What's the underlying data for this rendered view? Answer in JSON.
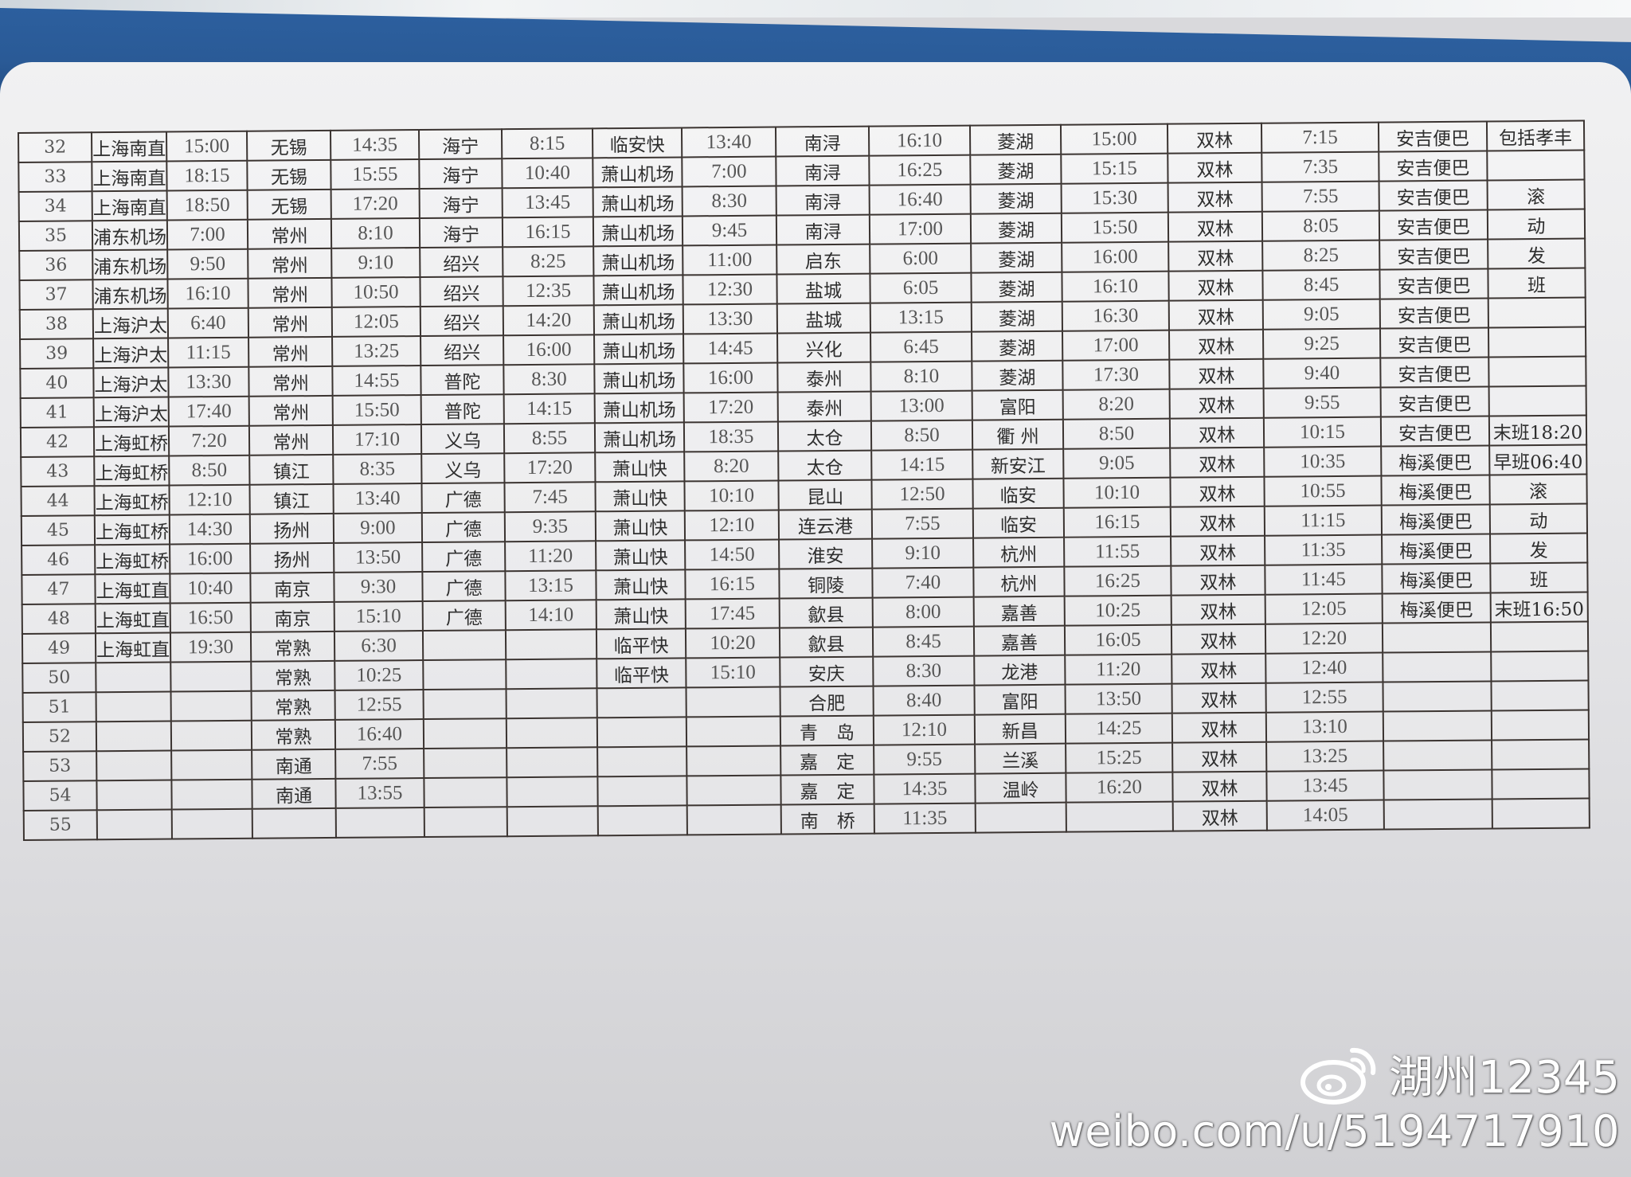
{
  "timetable": {
    "rows": [
      [
        "32",
        "上海南直",
        "15:00",
        "无锡",
        "14:35",
        "海宁",
        "8:15",
        "临安快",
        "13:40",
        "南浔",
        "16:10",
        "菱湖",
        "15:00",
        "双林",
        "7:15",
        "安吉便巴",
        "包括孝丰"
      ],
      [
        "33",
        "上海南直",
        "18:15",
        "无锡",
        "15:55",
        "海宁",
        "10:40",
        "萧山机场",
        "7:00",
        "南浔",
        "16:25",
        "菱湖",
        "15:15",
        "双林",
        "7:35",
        "安吉便巴",
        ""
      ],
      [
        "34",
        "上海南直",
        "18:50",
        "无锡",
        "17:20",
        "海宁",
        "13:45",
        "萧山机场",
        "8:30",
        "南浔",
        "16:40",
        "菱湖",
        "15:30",
        "双林",
        "7:55",
        "安吉便巴",
        "滚"
      ],
      [
        "35",
        "浦东机场",
        "7:00",
        "常州",
        "8:10",
        "海宁",
        "16:15",
        "萧山机场",
        "9:45",
        "南浔",
        "17:00",
        "菱湖",
        "15:50",
        "双林",
        "8:05",
        "安吉便巴",
        "动"
      ],
      [
        "36",
        "浦东机场",
        "9:50",
        "常州",
        "9:10",
        "绍兴",
        "8:25",
        "萧山机场",
        "11:00",
        "启东",
        "6:00",
        "菱湖",
        "16:00",
        "双林",
        "8:25",
        "安吉便巴",
        "发"
      ],
      [
        "37",
        "浦东机场",
        "16:10",
        "常州",
        "10:50",
        "绍兴",
        "12:35",
        "萧山机场",
        "12:30",
        "盐城",
        "6:05",
        "菱湖",
        "16:10",
        "双林",
        "8:45",
        "安吉便巴",
        "班"
      ],
      [
        "38",
        "上海沪太",
        "6:40",
        "常州",
        "12:05",
        "绍兴",
        "14:20",
        "萧山机场",
        "13:30",
        "盐城",
        "13:15",
        "菱湖",
        "16:30",
        "双林",
        "9:05",
        "安吉便巴",
        ""
      ],
      [
        "39",
        "上海沪太",
        "11:15",
        "常州",
        "13:25",
        "绍兴",
        "16:00",
        "萧山机场",
        "14:45",
        "兴化",
        "6:45",
        "菱湖",
        "17:00",
        "双林",
        "9:25",
        "安吉便巴",
        ""
      ],
      [
        "40",
        "上海沪太",
        "13:30",
        "常州",
        "14:55",
        "普陀",
        "8:30",
        "萧山机场",
        "16:00",
        "泰州",
        "8:10",
        "菱湖",
        "17:30",
        "双林",
        "9:40",
        "安吉便巴",
        ""
      ],
      [
        "41",
        "上海沪太",
        "17:40",
        "常州",
        "15:50",
        "普陀",
        "14:15",
        "萧山机场",
        "17:20",
        "泰州",
        "13:00",
        "富阳",
        "8:20",
        "双林",
        "9:55",
        "安吉便巴",
        ""
      ],
      [
        "42",
        "上海虹桥",
        "7:20",
        "常州",
        "17:10",
        "义乌",
        "8:55",
        "萧山机场",
        "18:35",
        "太仓",
        "8:50",
        "衢 州",
        "8:50",
        "双林",
        "10:15",
        "安吉便巴",
        "末班18:20"
      ],
      [
        "43",
        "上海虹桥",
        "8:50",
        "镇江",
        "8:35",
        "义乌",
        "17:20",
        "萧山快",
        "8:20",
        "太仓",
        "14:15",
        "新安江",
        "9:05",
        "双林",
        "10:35",
        "梅溪便巴",
        "早班06:40"
      ],
      [
        "44",
        "上海虹桥",
        "12:10",
        "镇江",
        "13:40",
        "广德",
        "7:45",
        "萧山快",
        "10:10",
        "昆山",
        "12:50",
        "临安",
        "10:10",
        "双林",
        "10:55",
        "梅溪便巴",
        "滚"
      ],
      [
        "45",
        "上海虹桥",
        "14:30",
        "扬州",
        "9:00",
        "广德",
        "9:35",
        "萧山快",
        "12:10",
        "连云港",
        "7:55",
        "临安",
        "16:15",
        "双林",
        "11:15",
        "梅溪便巴",
        "动"
      ],
      [
        "46",
        "上海虹桥",
        "16:00",
        "扬州",
        "13:50",
        "广德",
        "11:20",
        "萧山快",
        "14:50",
        "淮安",
        "9:10",
        "杭州",
        "11:55",
        "双林",
        "11:35",
        "梅溪便巴",
        "发"
      ],
      [
        "47",
        "上海虹直",
        "10:40",
        "南京",
        "9:30",
        "广德",
        "13:15",
        "萧山快",
        "16:15",
        "铜陵",
        "7:40",
        "杭州",
        "16:25",
        "双林",
        "11:45",
        "梅溪便巴",
        "班"
      ],
      [
        "48",
        "上海虹直",
        "16:50",
        "南京",
        "15:10",
        "广德",
        "14:10",
        "萧山快",
        "17:45",
        "歙县",
        "8:00",
        "嘉善",
        "10:25",
        "双林",
        "12:05",
        "梅溪便巴",
        "末班16:50"
      ],
      [
        "49",
        "上海虹直",
        "19:30",
        "常熟",
        "6:30",
        "",
        "",
        "临平快",
        "10:20",
        "歙县",
        "8:45",
        "嘉善",
        "16:05",
        "双林",
        "12:20",
        "",
        ""
      ],
      [
        "50",
        "",
        "",
        "常熟",
        "10:25",
        "",
        "",
        "临平快",
        "15:10",
        "安庆",
        "8:30",
        "龙港",
        "11:20",
        "双林",
        "12:40",
        "",
        ""
      ],
      [
        "51",
        "",
        "",
        "常熟",
        "12:55",
        "",
        "",
        "",
        "",
        "合肥",
        "8:40",
        "富阳",
        "13:50",
        "双林",
        "12:55",
        "",
        ""
      ],
      [
        "52",
        "",
        "",
        "常熟",
        "16:40",
        "",
        "",
        "",
        "",
        "青　岛",
        "12:10",
        "新昌",
        "14:25",
        "双林",
        "13:10",
        "",
        ""
      ],
      [
        "53",
        "",
        "",
        "南通",
        "7:55",
        "",
        "",
        "",
        "",
        "嘉　定",
        "9:55",
        "兰溪",
        "15:25",
        "双林",
        "13:25",
        "",
        ""
      ],
      [
        "54",
        "",
        "",
        "南通",
        "13:55",
        "",
        "",
        "",
        "",
        "嘉　定",
        "14:35",
        "温岭",
        "16:20",
        "双林",
        "13:45",
        "",
        ""
      ],
      [
        "55",
        "",
        "",
        "",
        "",
        "",
        "",
        "",
        "",
        "南　桥",
        "11:35",
        "",
        "",
        "双林",
        "14:05",
        "",
        ""
      ]
    ]
  },
  "watermark": {
    "icon": "weibo-logo-icon",
    "account": "湖州12345",
    "url": "weibo.com/u/5194717910"
  },
  "colors": {
    "band": "#2c5f9e",
    "paper": "#e9e9eb",
    "ink": "#3b3431"
  }
}
